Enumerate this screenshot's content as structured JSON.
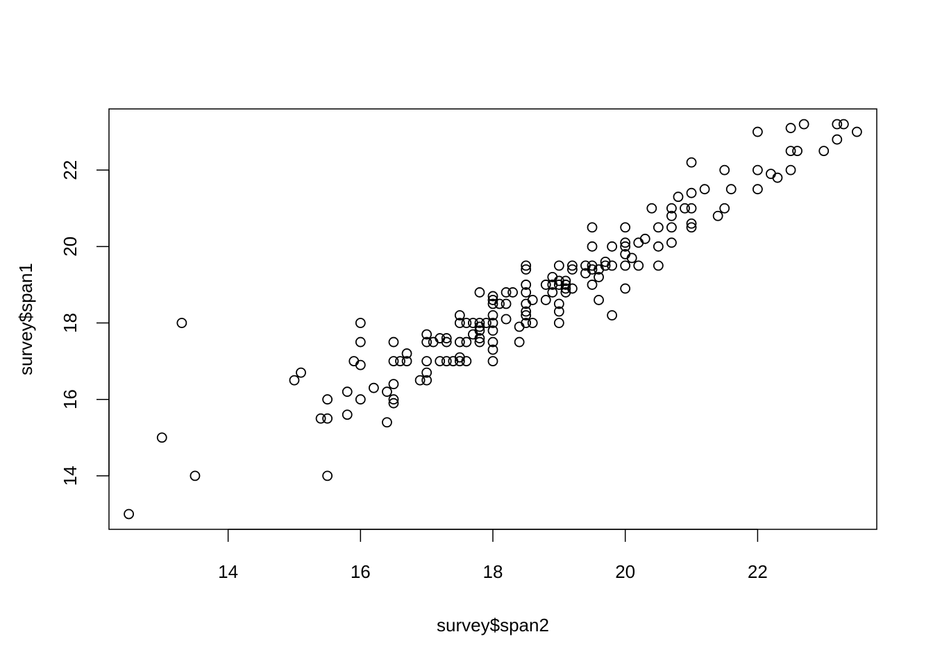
{
  "chart_data": {
    "type": "scatter",
    "title": "",
    "xlabel": "survey$span2",
    "ylabel": "survey$span1",
    "xlim": [
      12.2,
      23.8
    ],
    "ylim": [
      12.6,
      23.6
    ],
    "xticks": [
      14,
      16,
      18,
      20,
      22
    ],
    "yticks": [
      14,
      16,
      18,
      20,
      22
    ],
    "xtick_labels": [
      "14",
      "16",
      "18",
      "20",
      "22"
    ],
    "ytick_labels": [
      "14",
      "16",
      "18",
      "20",
      "22"
    ],
    "grid": false,
    "legend": "none",
    "marker": "open-circle",
    "color": "#000000",
    "points": [
      [
        12.5,
        13.0
      ],
      [
        13.0,
        15.0
      ],
      [
        13.3,
        18.0
      ],
      [
        13.5,
        14.0
      ],
      [
        15.0,
        16.5
      ],
      [
        15.1,
        16.7
      ],
      [
        15.4,
        15.5
      ],
      [
        15.5,
        15.5
      ],
      [
        15.5,
        16.0
      ],
      [
        15.5,
        14.0
      ],
      [
        15.8,
        16.2
      ],
      [
        15.8,
        15.6
      ],
      [
        15.9,
        17.0
      ],
      [
        16.0,
        18.0
      ],
      [
        16.0,
        17.5
      ],
      [
        16.0,
        16.9
      ],
      [
        16.0,
        16.0
      ],
      [
        16.2,
        16.3
      ],
      [
        16.4,
        16.2
      ],
      [
        16.4,
        15.4
      ],
      [
        16.5,
        17.5
      ],
      [
        16.5,
        17.0
      ],
      [
        16.5,
        16.4
      ],
      [
        16.5,
        16.0
      ],
      [
        16.5,
        15.9
      ],
      [
        16.6,
        17.0
      ],
      [
        16.7,
        17.2
      ],
      [
        16.7,
        17.0
      ],
      [
        16.9,
        16.5
      ],
      [
        17.0,
        17.7
      ],
      [
        17.0,
        17.5
      ],
      [
        17.0,
        17.0
      ],
      [
        17.0,
        16.7
      ],
      [
        17.0,
        16.5
      ],
      [
        17.1,
        17.5
      ],
      [
        17.2,
        17.6
      ],
      [
        17.2,
        17.0
      ],
      [
        17.3,
        17.6
      ],
      [
        17.3,
        17.5
      ],
      [
        17.3,
        17.0
      ],
      [
        17.4,
        17.0
      ],
      [
        17.5,
        18.2
      ],
      [
        17.5,
        18.0
      ],
      [
        17.5,
        17.5
      ],
      [
        17.5,
        17.1
      ],
      [
        17.5,
        17.0
      ],
      [
        17.6,
        18.0
      ],
      [
        17.6,
        17.5
      ],
      [
        17.6,
        17.0
      ],
      [
        17.7,
        18.0
      ],
      [
        17.7,
        17.7
      ],
      [
        17.8,
        18.8
      ],
      [
        17.8,
        18.0
      ],
      [
        17.8,
        17.9
      ],
      [
        17.8,
        17.8
      ],
      [
        17.8,
        17.6
      ],
      [
        17.8,
        17.5
      ],
      [
        17.9,
        18.0
      ],
      [
        18.0,
        18.7
      ],
      [
        18.0,
        18.6
      ],
      [
        18.0,
        18.5
      ],
      [
        18.0,
        18.2
      ],
      [
        18.0,
        18.0
      ],
      [
        18.0,
        17.8
      ],
      [
        18.0,
        17.5
      ],
      [
        18.0,
        17.3
      ],
      [
        18.0,
        17.0
      ],
      [
        18.1,
        18.5
      ],
      [
        18.2,
        18.8
      ],
      [
        18.2,
        18.5
      ],
      [
        18.2,
        18.1
      ],
      [
        18.3,
        18.8
      ],
      [
        18.4,
        17.9
      ],
      [
        18.4,
        17.5
      ],
      [
        18.5,
        19.5
      ],
      [
        18.5,
        19.4
      ],
      [
        18.5,
        19.0
      ],
      [
        18.5,
        18.8
      ],
      [
        18.5,
        18.5
      ],
      [
        18.5,
        18.3
      ],
      [
        18.5,
        18.2
      ],
      [
        18.5,
        18.0
      ],
      [
        18.6,
        18.6
      ],
      [
        18.6,
        18.0
      ],
      [
        18.8,
        19.0
      ],
      [
        18.8,
        18.6
      ],
      [
        18.9,
        19.2
      ],
      [
        18.9,
        19.0
      ],
      [
        18.9,
        18.8
      ],
      [
        19.0,
        19.5
      ],
      [
        19.0,
        19.1
      ],
      [
        19.0,
        19.0
      ],
      [
        19.0,
        18.5
      ],
      [
        19.0,
        18.3
      ],
      [
        19.0,
        18.0
      ],
      [
        19.1,
        19.1
      ],
      [
        19.1,
        19.0
      ],
      [
        19.1,
        18.9
      ],
      [
        19.1,
        18.8
      ],
      [
        19.2,
        19.5
      ],
      [
        19.2,
        19.4
      ],
      [
        19.2,
        18.9
      ],
      [
        19.4,
        19.5
      ],
      [
        19.4,
        19.3
      ],
      [
        19.5,
        20.5
      ],
      [
        19.5,
        20.0
      ],
      [
        19.5,
        19.5
      ],
      [
        19.5,
        19.4
      ],
      [
        19.5,
        19.0
      ],
      [
        19.6,
        19.4
      ],
      [
        19.6,
        19.2
      ],
      [
        19.6,
        18.6
      ],
      [
        19.7,
        19.6
      ],
      [
        19.7,
        19.5
      ],
      [
        19.8,
        20.0
      ],
      [
        19.8,
        19.5
      ],
      [
        19.8,
        18.2
      ],
      [
        20.0,
        20.5
      ],
      [
        20.0,
        20.1
      ],
      [
        20.0,
        20.0
      ],
      [
        20.0,
        19.8
      ],
      [
        20.0,
        19.5
      ],
      [
        20.0,
        18.9
      ],
      [
        20.1,
        19.7
      ],
      [
        20.2,
        20.1
      ],
      [
        20.2,
        19.5
      ],
      [
        20.3,
        20.2
      ],
      [
        20.4,
        21.0
      ],
      [
        20.5,
        20.5
      ],
      [
        20.5,
        20.0
      ],
      [
        20.5,
        19.5
      ],
      [
        20.7,
        21.0
      ],
      [
        20.7,
        20.8
      ],
      [
        20.7,
        20.5
      ],
      [
        20.7,
        20.1
      ],
      [
        20.8,
        21.3
      ],
      [
        20.9,
        21.0
      ],
      [
        21.0,
        22.2
      ],
      [
        21.0,
        21.4
      ],
      [
        21.0,
        21.0
      ],
      [
        21.0,
        20.6
      ],
      [
        21.0,
        20.5
      ],
      [
        21.2,
        21.5
      ],
      [
        21.4,
        20.8
      ],
      [
        21.5,
        22.0
      ],
      [
        21.5,
        21.0
      ],
      [
        21.6,
        21.5
      ],
      [
        22.0,
        23.0
      ],
      [
        22.0,
        22.0
      ],
      [
        22.0,
        21.5
      ],
      [
        22.2,
        21.9
      ],
      [
        22.3,
        21.8
      ],
      [
        22.5,
        23.1
      ],
      [
        22.5,
        22.5
      ],
      [
        22.5,
        22.0
      ],
      [
        22.6,
        22.5
      ],
      [
        22.7,
        23.2
      ],
      [
        23.0,
        22.5
      ],
      [
        23.2,
        23.2
      ],
      [
        23.2,
        22.8
      ],
      [
        23.3,
        23.2
      ],
      [
        23.5,
        23.0
      ]
    ]
  }
}
